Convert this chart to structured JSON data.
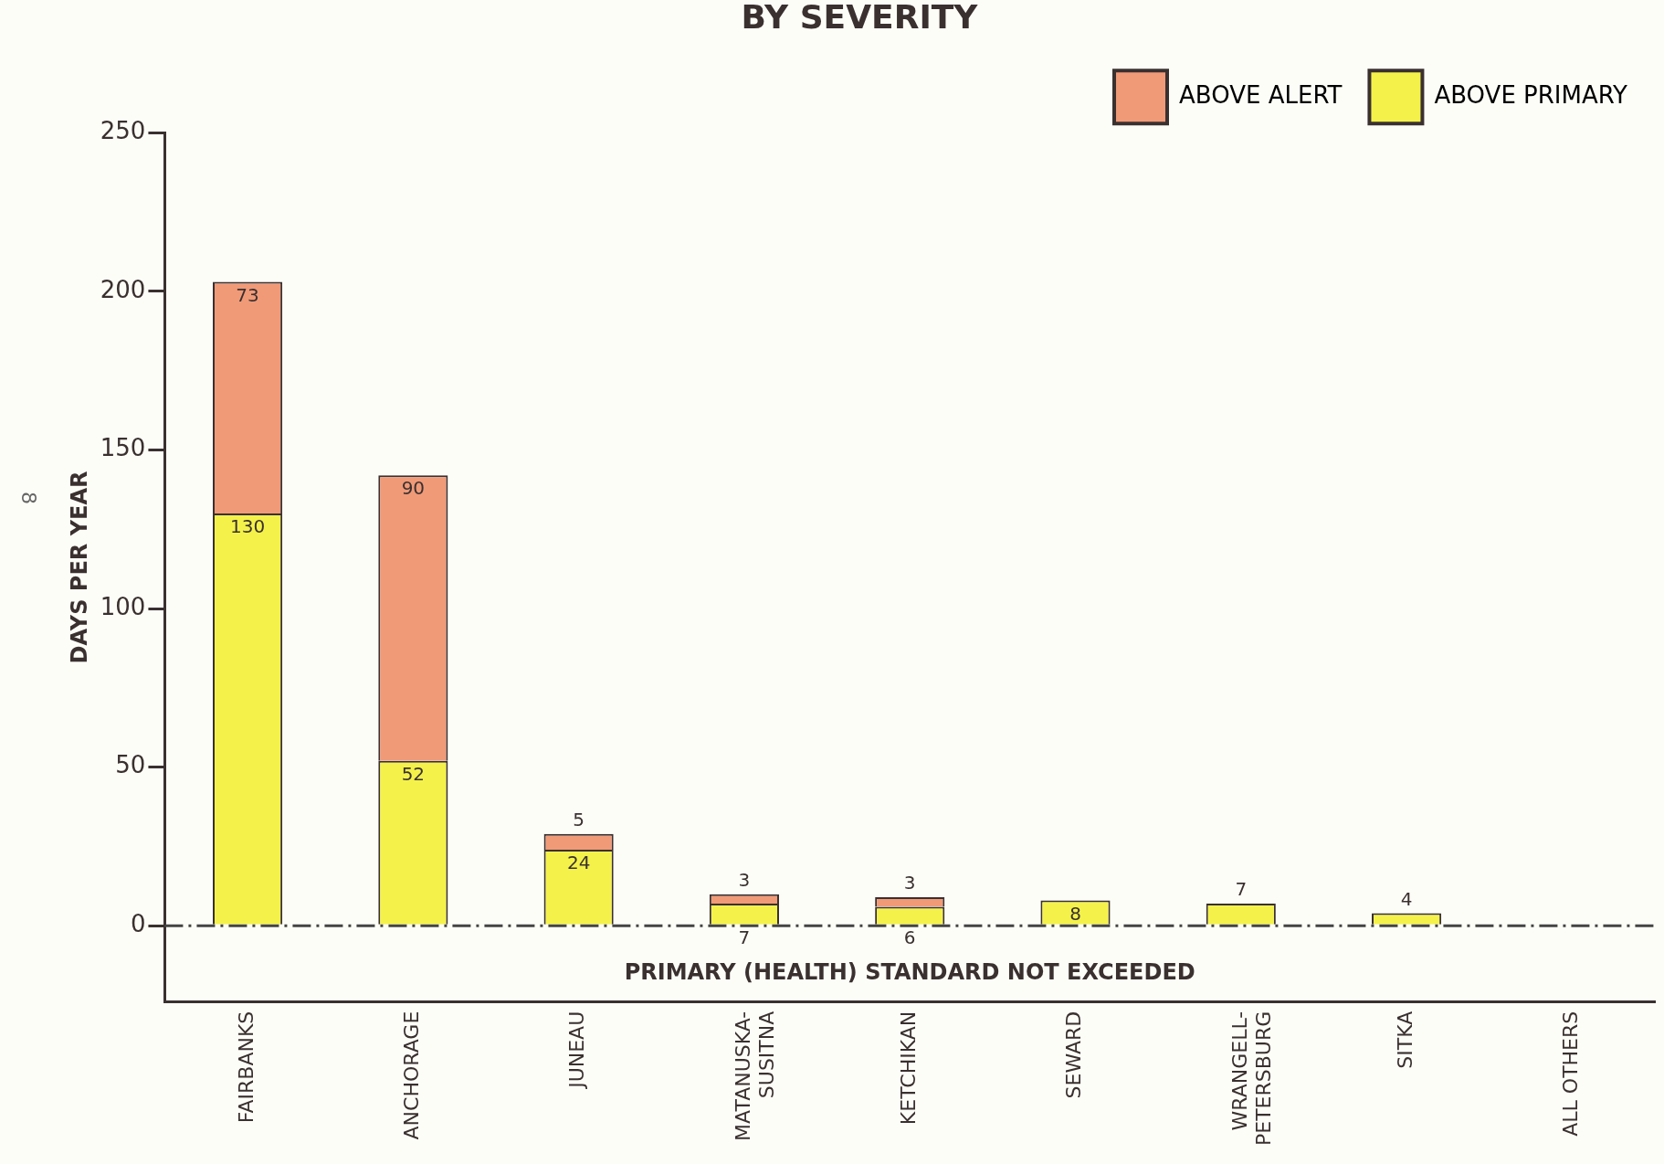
{
  "chart_data": {
    "type": "bar",
    "title": "BY SEVERITY",
    "ylabel": "DAYS PER YEAR",
    "categories": [
      "FAIRBANKS",
      "ANCHORAGE",
      "JUNEAU",
      "MATANUSKA-SUSITNA",
      "KETCHIKAN",
      "SEWARD",
      "WRANGELL-PETERSBURG",
      "SITKA",
      "ALL OTHERS"
    ],
    "stacked": true,
    "series": [
      {
        "name": "ABOVE PRIMARY",
        "color": "#f4f24a",
        "values": [
          130,
          52,
          24,
          7,
          6,
          8,
          7,
          4,
          0
        ],
        "value_labels": [
          "130",
          "52",
          "24",
          "7",
          "6",
          "8",
          "7",
          "4",
          null
        ]
      },
      {
        "name": "ABOVE ALERT",
        "color": "#f09a78",
        "values": [
          73,
          90,
          5,
          3,
          3,
          null,
          null,
          null,
          null
        ],
        "value_labels": [
          "73",
          "90",
          "5",
          "3",
          "3",
          null,
          null,
          null,
          null
        ]
      }
    ],
    "ylim": [
      -24,
      250
    ],
    "yticks": [
      0,
      50,
      100,
      150,
      200,
      250
    ],
    "grid": false,
    "legend": "top right",
    "ref_lines": [
      {
        "axis": "y",
        "value": 0,
        "label": "PRIMARY (HEALTH) STANDARD NOT EXCEEDED",
        "line_style": "dashdot",
        "color": "#444444"
      }
    ],
    "annotations": [
      "8"
    ]
  }
}
